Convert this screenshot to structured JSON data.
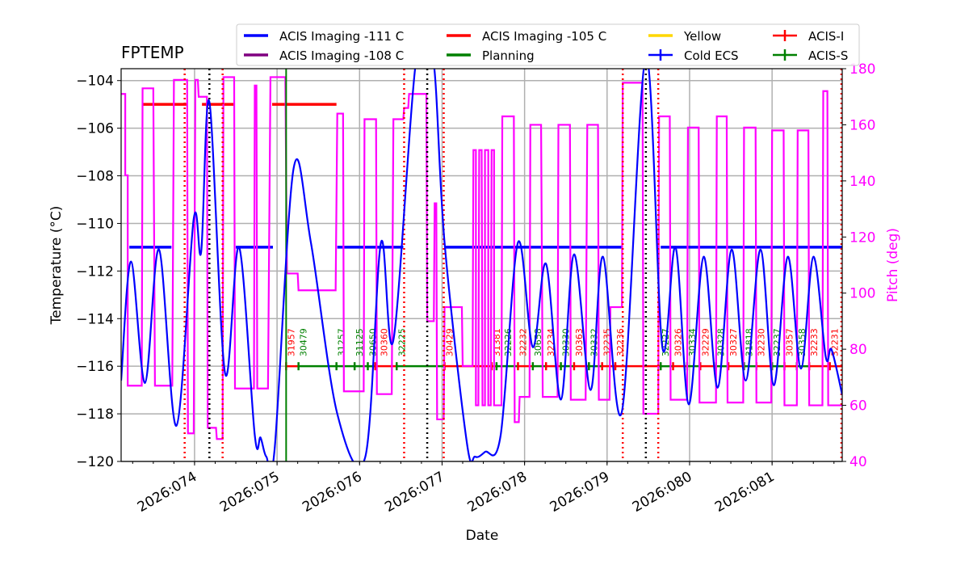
{
  "chart_data": {
    "type": "line",
    "title": "FPTEMP",
    "xlabel": "Date",
    "ylabel": "Temperature ($^\\circ$C)",
    "ylabel_display": "Temperature (°C)",
    "y2label": "Pitch (deg)",
    "year": "2026",
    "xlim_doy": [
      73.11,
      81.85
    ],
    "ylim": [
      -120,
      -103.5
    ],
    "y2lim": [
      40,
      180
    ],
    "grid": true,
    "legend_placement": "top-center",
    "x_ticks": [
      74,
      75,
      76,
      77,
      78,
      79,
      80,
      81
    ],
    "x_tick_labels": [
      "2026:074",
      "2026:075",
      "2026:076",
      "2026:077",
      "2026:078",
      "2026:079",
      "2026:080",
      "2026:081"
    ],
    "y_ticks": [
      -104,
      -106,
      -108,
      -110,
      -112,
      -114,
      -116,
      -118,
      -120
    ],
    "y2_ticks": [
      40,
      60,
      80,
      100,
      120,
      140,
      160,
      180
    ],
    "colors": {
      "temp": "#0000ff",
      "pitch": "#ff00ff",
      "limit111": "#0000ff",
      "limit105": "#ff0000",
      "planning": "#008000",
      "acis_i": "#ff0000",
      "acis_s": "#008000"
    },
    "legend": [
      {
        "label": "ACIS Imaging -111 C",
        "color": "#0000ff",
        "style": "line"
      },
      {
        "label": "ACIS Imaging -105 C",
        "color": "#ff0000",
        "style": "line"
      },
      {
        "label": "Yellow",
        "color": "#ffd700",
        "style": "line"
      },
      {
        "label": "ACIS-I",
        "color": "#ff0000",
        "style": "errbar"
      },
      {
        "label": "ACIS Imaging -108 C",
        "color": "#800080",
        "style": "line"
      },
      {
        "label": "Planning",
        "color": "#008000",
        "style": "line"
      },
      {
        "label": "Cold ECS",
        "color": "#0000ff",
        "style": "errbar"
      },
      {
        "label": "ACIS-S",
        "color": "#008000",
        "style": "errbar"
      }
    ],
    "temperature": [
      [
        73.11,
        -116.6
      ],
      [
        73.23,
        -111.6
      ],
      [
        73.4,
        -116.7
      ],
      [
        73.57,
        -111.1
      ],
      [
        73.78,
        -118.5
      ],
      [
        73.99,
        -109.8
      ],
      [
        74.08,
        -111.2
      ],
      [
        74.18,
        -104.9
      ],
      [
        74.37,
        -116.3
      ],
      [
        74.54,
        -111.0
      ],
      [
        74.73,
        -118.9
      ],
      [
        74.8,
        -119.0
      ],
      [
        74.87,
        -119.8
      ],
      [
        74.97,
        -119.5
      ],
      [
        75.2,
        -107.7
      ],
      [
        75.41,
        -110.8
      ],
      [
        75.73,
        -118.0
      ],
      [
        76.07,
        -119.8
      ],
      [
        76.26,
        -110.8
      ],
      [
        76.41,
        -114.9
      ],
      [
        76.69,
        -103.0
      ],
      [
        76.89,
        -103.0
      ],
      [
        77.03,
        -110.8
      ],
      [
        77.3,
        -119.2
      ],
      [
        77.4,
        -119.8
      ],
      [
        77.52,
        -119.6
      ],
      [
        77.71,
        -118.9
      ],
      [
        77.92,
        -110.8
      ],
      [
        78.1,
        -115.2
      ],
      [
        78.26,
        -111.7
      ],
      [
        78.44,
        -117.4
      ],
      [
        78.6,
        -111.3
      ],
      [
        78.8,
        -117.0
      ],
      [
        78.95,
        -111.4
      ],
      [
        79.18,
        -117.9
      ],
      [
        79.47,
        -103.0
      ],
      [
        79.67,
        -115.2
      ],
      [
        79.83,
        -111.0
      ],
      [
        79.99,
        -117.6
      ],
      [
        80.17,
        -111.4
      ],
      [
        80.34,
        -116.9
      ],
      [
        80.51,
        -111.1
      ],
      [
        80.68,
        -116.6
      ],
      [
        80.86,
        -111.1
      ],
      [
        81.02,
        -116.8
      ],
      [
        81.19,
        -111.4
      ],
      [
        81.35,
        -116.1
      ],
      [
        81.5,
        -111.4
      ],
      [
        81.65,
        -115.6
      ],
      [
        81.72,
        -115.3
      ],
      [
        81.85,
        -117.2
      ]
    ],
    "limit_111_segments": [
      [
        73.21,
        73.72
      ],
      [
        74.5,
        74.95
      ],
      [
        75.73,
        76.53
      ],
      [
        77.03,
        79.18
      ],
      [
        79.65,
        81.85
      ]
    ],
    "limit_105_segments": [
      [
        73.37,
        73.91
      ],
      [
        74.09,
        74.48
      ],
      [
        74.94,
        75.72
      ]
    ],
    "pitch_steps": [
      [
        73.11,
        73.16,
        171
      ],
      [
        73.16,
        73.19,
        142
      ],
      [
        73.19,
        73.36,
        67
      ],
      [
        73.37,
        73.5,
        173
      ],
      [
        73.52,
        73.73,
        67
      ],
      [
        73.75,
        73.91,
        176
      ],
      [
        73.92,
        73.99,
        50
      ],
      [
        74.01,
        74.04,
        176
      ],
      [
        74.05,
        74.15,
        170
      ],
      [
        74.16,
        74.26,
        52
      ],
      [
        74.27,
        74.34,
        48
      ],
      [
        74.35,
        74.48,
        177
      ],
      [
        74.49,
        74.72,
        66
      ],
      [
        74.73,
        74.75,
        174
      ],
      [
        74.76,
        74.89,
        66
      ],
      [
        74.92,
        75.1,
        177
      ],
      [
        75.12,
        75.25,
        107
      ],
      [
        75.26,
        75.71,
        101
      ],
      [
        75.73,
        75.8,
        164
      ],
      [
        75.81,
        76.05,
        65
      ],
      [
        76.06,
        76.2,
        162
      ],
      [
        76.21,
        76.39,
        64
      ],
      [
        76.41,
        76.53,
        162
      ],
      [
        76.54,
        76.59,
        166
      ],
      [
        76.6,
        76.81,
        171
      ],
      [
        76.82,
        76.9,
        90
      ],
      [
        76.91,
        76.93,
        132
      ],
      [
        76.94,
        77.02,
        55
      ],
      [
        77.03,
        77.24,
        95
      ],
      [
        77.25,
        77.37,
        74
      ],
      [
        77.38,
        77.41,
        151
      ],
      [
        77.41,
        77.44,
        60
      ],
      [
        77.45,
        77.48,
        151
      ],
      [
        77.49,
        77.52,
        60
      ],
      [
        77.52,
        77.56,
        151
      ],
      [
        77.56,
        77.59,
        60
      ],
      [
        77.6,
        77.63,
        151
      ],
      [
        77.63,
        77.72,
        60
      ],
      [
        77.73,
        77.87,
        163
      ],
      [
        77.88,
        77.93,
        54
      ],
      [
        77.94,
        78.06,
        63
      ],
      [
        78.07,
        78.2,
        160
      ],
      [
        78.22,
        78.4,
        63
      ],
      [
        78.41,
        78.55,
        160
      ],
      [
        78.56,
        78.74,
        62
      ],
      [
        78.76,
        78.89,
        160
      ],
      [
        78.9,
        79.03,
        62
      ],
      [
        79.04,
        79.18,
        95
      ],
      [
        79.19,
        79.43,
        175
      ],
      [
        79.44,
        79.62,
        57
      ],
      [
        79.63,
        79.76,
        163
      ],
      [
        79.77,
        79.97,
        62
      ],
      [
        79.98,
        80.11,
        159
      ],
      [
        80.12,
        80.32,
        61
      ],
      [
        80.33,
        80.45,
        163
      ],
      [
        80.46,
        80.65,
        61
      ],
      [
        80.66,
        80.8,
        159
      ],
      [
        80.81,
        80.99,
        61
      ],
      [
        81.0,
        81.14,
        158
      ],
      [
        81.15,
        81.3,
        60
      ],
      [
        81.31,
        81.44,
        158
      ],
      [
        81.45,
        81.61,
        60
      ],
      [
        81.62,
        81.67,
        172
      ],
      [
        81.68,
        81.85,
        60
      ]
    ],
    "vlines_red_dotted": [
      73.88,
      74.34,
      76.54,
      77.02,
      79.19,
      79.62,
      81.84
    ],
    "vlines_black_dotted": [
      74.18,
      76.82,
      79.47
    ],
    "vlines_green_solid": [
      75.11
    ],
    "obsids": [
      {
        "id": "31957",
        "doy": 75.11,
        "inst": "I"
      },
      {
        "id": "30479",
        "doy": 75.26,
        "inst": "S"
      },
      {
        "id": "31257",
        "doy": 75.72,
        "inst": "S"
      },
      {
        "id": "31125",
        "doy": 75.94,
        "inst": "S"
      },
      {
        "id": "30650",
        "doy": 76.1,
        "inst": "S"
      },
      {
        "id": "30360",
        "doy": 76.19,
        "inst": "I"
      },
      {
        "id": "32225",
        "doy": 76.45,
        "inst": "S"
      },
      {
        "id": "30429",
        "doy": 77.03,
        "inst": "I"
      },
      {
        "id": "31381",
        "doy": 77.6,
        "inst": "I"
      },
      {
        "id": "32226",
        "doy": 77.66,
        "inst": "S"
      },
      {
        "id": "32232",
        "doy": 77.92,
        "inst": "I"
      },
      {
        "id": "30658",
        "doy": 78.1,
        "inst": "S"
      },
      {
        "id": "32234",
        "doy": 78.26,
        "inst": "I"
      },
      {
        "id": "30330",
        "doy": 78.44,
        "inst": "S"
      },
      {
        "id": "30363",
        "doy": 78.6,
        "inst": "I"
      },
      {
        "id": "30332",
        "doy": 78.78,
        "inst": "S"
      },
      {
        "id": "32235",
        "doy": 78.94,
        "inst": "I"
      },
      {
        "id": "32236",
        "doy": 79.1,
        "inst": "I"
      },
      {
        "id": "32227",
        "doy": 79.65,
        "inst": "S"
      },
      {
        "id": "30326",
        "doy": 79.8,
        "inst": "I"
      },
      {
        "id": "30334",
        "doy": 79.97,
        "inst": "S"
      },
      {
        "id": "32229",
        "doy": 80.13,
        "inst": "I"
      },
      {
        "id": "30328",
        "doy": 80.32,
        "inst": "S"
      },
      {
        "id": "30327",
        "doy": 80.47,
        "inst": "I"
      },
      {
        "id": "31818",
        "doy": 80.66,
        "inst": "S"
      },
      {
        "id": "32230",
        "doy": 80.81,
        "inst": "I"
      },
      {
        "id": "32237",
        "doy": 81.0,
        "inst": "S"
      },
      {
        "id": "30357",
        "doy": 81.15,
        "inst": "I"
      },
      {
        "id": "30358",
        "doy": 81.3,
        "inst": "S"
      },
      {
        "id": "32233",
        "doy": 81.45,
        "inst": "I"
      },
      {
        "id": "32231",
        "doy": 81.7,
        "inst": "I"
      }
    ],
    "obsid_band_temp": -116,
    "obsid_end_doy": 81.85
  }
}
